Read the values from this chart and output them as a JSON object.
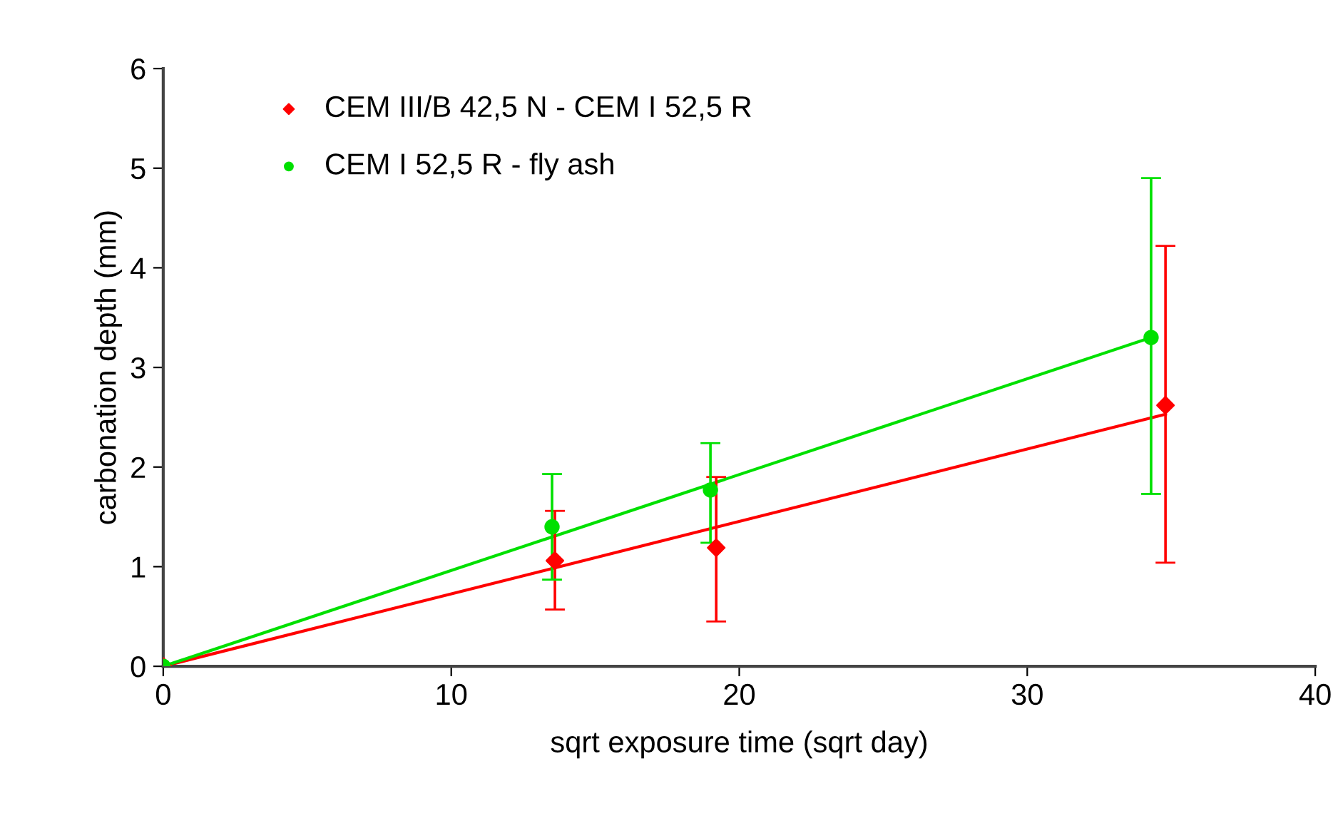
{
  "chart_data": {
    "type": "scatter",
    "xlabel": "sqrt exposure time (sqrt day)",
    "ylabel": "carbonation depth (mm)",
    "xlim": [
      0,
      40
    ],
    "xticks": [
      0,
      10,
      20,
      30,
      40
    ],
    "ylim": [
      0,
      6
    ],
    "yticks": [
      0,
      1,
      2,
      3,
      4,
      5,
      6
    ],
    "grid": false,
    "legend": "top left",
    "series": [
      {
        "name": "CEM III/B 42,5 N - CEM I 52,5 R",
        "color": "#ff0000",
        "marker": "diamond",
        "x": [
          0,
          13.6,
          19.2,
          34.8
        ],
        "values": [
          0,
          1.06,
          1.19,
          2.62
        ],
        "errors": [
          null,
          [
            0.57,
            1.56
          ],
          [
            0.45,
            1.9
          ],
          [
            1.04,
            4.22
          ]
        ]
      },
      {
        "name": "CEM I 52,5 R - fly ash",
        "color": "#00e000",
        "marker": "circle",
        "x": [
          0,
          13.5,
          19.0,
          34.3
        ],
        "values": [
          0,
          1.4,
          1.77,
          3.3
        ],
        "errors": [
          null,
          [
            0.87,
            1.93
          ],
          [
            1.24,
            2.24
          ],
          [
            1.73,
            4.9
          ]
        ]
      },
      {
        "type": "line",
        "color": "#ff0000",
        "x": [
          0,
          34.8
        ],
        "values": [
          0,
          2.53
        ]
      },
      {
        "type": "line",
        "color": "#00e000",
        "x": [
          0,
          34.3
        ],
        "values": [
          0,
          3.3
        ]
      }
    ]
  }
}
